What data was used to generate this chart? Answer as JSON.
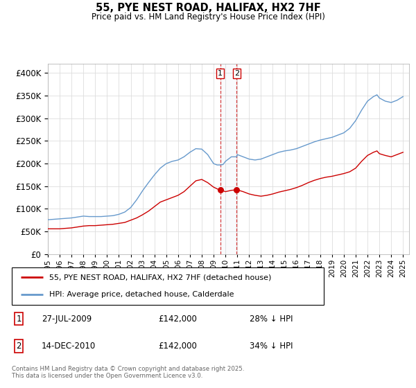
{
  "title": "55, PYE NEST ROAD, HALIFAX, HX2 7HF",
  "subtitle": "Price paid vs. HM Land Registry's House Price Index (HPI)",
  "legend_line1": "55, PYE NEST ROAD, HALIFAX, HX2 7HF (detached house)",
  "legend_line2": "HPI: Average price, detached house, Calderdale",
  "red_color": "#cc0000",
  "blue_color": "#6699cc",
  "transaction1": {
    "label": "1",
    "date": "27-JUL-2009",
    "price": "£142,000",
    "hpi": "28% ↓ HPI",
    "x_year": 2009.57
  },
  "transaction2": {
    "label": "2",
    "date": "14-DEC-2010",
    "price": "£142,000",
    "hpi": "34% ↓ HPI",
    "x_year": 2010.95
  },
  "footnote": "Contains HM Land Registry data © Crown copyright and database right 2025.\nThis data is licensed under the Open Government Licence v3.0.",
  "ylim": [
    0,
    420000
  ],
  "xlim_start": 1995.0,
  "xlim_end": 2025.5,
  "red_data": [
    [
      1995.0,
      56000
    ],
    [
      1995.5,
      56000
    ],
    [
      1996.0,
      56000
    ],
    [
      1996.5,
      57000
    ],
    [
      1997.0,
      58000
    ],
    [
      1997.5,
      60000
    ],
    [
      1998.0,
      62000
    ],
    [
      1998.5,
      63000
    ],
    [
      1999.0,
      63000
    ],
    [
      1999.5,
      64000
    ],
    [
      2000.0,
      65000
    ],
    [
      2000.5,
      66000
    ],
    [
      2001.0,
      68000
    ],
    [
      2001.5,
      70000
    ],
    [
      2002.0,
      75000
    ],
    [
      2002.5,
      80000
    ],
    [
      2003.0,
      87000
    ],
    [
      2003.5,
      95000
    ],
    [
      2004.0,
      105000
    ],
    [
      2004.5,
      115000
    ],
    [
      2005.0,
      120000
    ],
    [
      2005.5,
      125000
    ],
    [
      2006.0,
      130000
    ],
    [
      2006.5,
      138000
    ],
    [
      2007.0,
      150000
    ],
    [
      2007.5,
      162000
    ],
    [
      2008.0,
      165000
    ],
    [
      2008.5,
      158000
    ],
    [
      2009.0,
      148000
    ],
    [
      2009.4,
      143000
    ],
    [
      2009.57,
      142000
    ],
    [
      2009.8,
      140000
    ],
    [
      2010.0,
      138000
    ],
    [
      2010.5,
      141000
    ],
    [
      2010.95,
      142000
    ],
    [
      2011.0,
      142000
    ],
    [
      2011.5,
      138000
    ],
    [
      2012.0,
      133000
    ],
    [
      2012.5,
      130000
    ],
    [
      2013.0,
      128000
    ],
    [
      2013.5,
      130000
    ],
    [
      2014.0,
      133000
    ],
    [
      2014.5,
      137000
    ],
    [
      2015.0,
      140000
    ],
    [
      2015.5,
      143000
    ],
    [
      2016.0,
      147000
    ],
    [
      2016.5,
      152000
    ],
    [
      2017.0,
      158000
    ],
    [
      2017.5,
      163000
    ],
    [
      2018.0,
      167000
    ],
    [
      2018.5,
      170000
    ],
    [
      2019.0,
      172000
    ],
    [
      2019.5,
      175000
    ],
    [
      2020.0,
      178000
    ],
    [
      2020.5,
      182000
    ],
    [
      2021.0,
      190000
    ],
    [
      2021.5,
      205000
    ],
    [
      2022.0,
      218000
    ],
    [
      2022.5,
      225000
    ],
    [
      2022.8,
      228000
    ],
    [
      2023.0,
      222000
    ],
    [
      2023.5,
      218000
    ],
    [
      2024.0,
      215000
    ],
    [
      2024.5,
      220000
    ],
    [
      2025.0,
      225000
    ]
  ],
  "blue_data": [
    [
      1995.0,
      76000
    ],
    [
      1995.5,
      77000
    ],
    [
      1996.0,
      78000
    ],
    [
      1996.5,
      79000
    ],
    [
      1997.0,
      80000
    ],
    [
      1997.5,
      82000
    ],
    [
      1998.0,
      84000
    ],
    [
      1998.5,
      83000
    ],
    [
      1999.0,
      83000
    ],
    [
      1999.5,
      83000
    ],
    [
      2000.0,
      84000
    ],
    [
      2000.5,
      85000
    ],
    [
      2001.0,
      88000
    ],
    [
      2001.5,
      93000
    ],
    [
      2002.0,
      103000
    ],
    [
      2002.5,
      120000
    ],
    [
      2003.0,
      140000
    ],
    [
      2003.5,
      158000
    ],
    [
      2004.0,
      175000
    ],
    [
      2004.5,
      190000
    ],
    [
      2005.0,
      200000
    ],
    [
      2005.5,
      205000
    ],
    [
      2006.0,
      208000
    ],
    [
      2006.5,
      215000
    ],
    [
      2007.0,
      225000
    ],
    [
      2007.5,
      233000
    ],
    [
      2008.0,
      232000
    ],
    [
      2008.5,
      220000
    ],
    [
      2009.0,
      200000
    ],
    [
      2009.3,
      197000
    ],
    [
      2009.57,
      197000
    ],
    [
      2009.8,
      198000
    ],
    [
      2010.0,
      205000
    ],
    [
      2010.5,
      215000
    ],
    [
      2010.95,
      215000
    ],
    [
      2011.0,
      220000
    ],
    [
      2011.5,
      215000
    ],
    [
      2012.0,
      210000
    ],
    [
      2012.5,
      208000
    ],
    [
      2013.0,
      210000
    ],
    [
      2013.5,
      215000
    ],
    [
      2014.0,
      220000
    ],
    [
      2014.5,
      225000
    ],
    [
      2015.0,
      228000
    ],
    [
      2015.5,
      230000
    ],
    [
      2016.0,
      233000
    ],
    [
      2016.5,
      238000
    ],
    [
      2017.0,
      243000
    ],
    [
      2017.5,
      248000
    ],
    [
      2018.0,
      252000
    ],
    [
      2018.5,
      255000
    ],
    [
      2019.0,
      258000
    ],
    [
      2019.5,
      263000
    ],
    [
      2020.0,
      268000
    ],
    [
      2020.5,
      278000
    ],
    [
      2021.0,
      295000
    ],
    [
      2021.5,
      318000
    ],
    [
      2022.0,
      338000
    ],
    [
      2022.5,
      348000
    ],
    [
      2022.8,
      352000
    ],
    [
      2023.0,
      345000
    ],
    [
      2023.5,
      338000
    ],
    [
      2024.0,
      335000
    ],
    [
      2024.5,
      340000
    ],
    [
      2025.0,
      348000
    ]
  ]
}
